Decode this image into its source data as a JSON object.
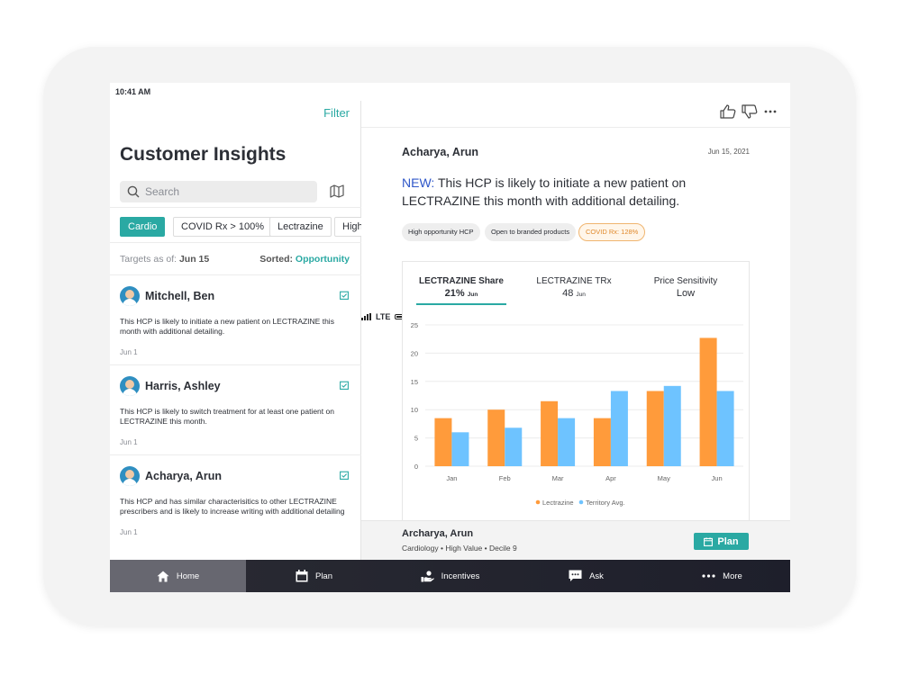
{
  "status": {
    "time": "10:41 AM",
    "network": "LTE"
  },
  "left": {
    "filter_label": "Filter",
    "title": "Customer Insights",
    "search_placeholder": "Search",
    "chips": [
      "Cardio",
      "COVID Rx > 100%",
      "Lectrazine",
      "High"
    ],
    "targets_label": "Targets as of:",
    "targets_date": "Jun 15",
    "sorted_label": "Sorted:",
    "sorted_value": "Opportunity",
    "cards": [
      {
        "name": "Mitchell, Ben",
        "desc": "This HCP is likely to initiate a new patient on LECTRAZINE this month with additional detailing.",
        "date": "Jun 1"
      },
      {
        "name": "Harris, Ashley",
        "desc": "This HCP is likely to switch treatment for at least one patient on LECTRAZINE this month.",
        "date": "Jun 1"
      },
      {
        "name": "Acharya, Arun",
        "desc": "This HCP and has similar characterisitics to other LECTRAZINE prescribers and is likely to increase writing with additional detailing",
        "date": "Jun 1"
      }
    ]
  },
  "detail": {
    "name": "Acharya, Arun",
    "date": "Jun 15, 2021",
    "headline_new": "NEW:",
    "headline_text": " This HCP is likely to initiate a new patient on LECTRAZINE this month with additional detailing.",
    "tags": [
      "High opportunity HCP",
      "Open to branded products",
      "COVID Rx: 128%"
    ],
    "tabs": [
      {
        "label": "LECTRAZINE Share",
        "value": "21%",
        "unit": "Jun"
      },
      {
        "label": "LECTRAZINE TRx",
        "value": "48",
        "unit": "Jun"
      },
      {
        "label": "Price Sensitivity",
        "value": "Low",
        "unit": ""
      }
    ],
    "footer_name": "Archarya, Arun",
    "footer_sub": "Cardiology • High Value • Decile 9",
    "plan_label": "Plan"
  },
  "chart_data": {
    "type": "bar",
    "categories": [
      "Jan",
      "Feb",
      "Mar",
      "Apr",
      "May",
      "Jun"
    ],
    "series": [
      {
        "name": "Lectrazine",
        "color": "#ff9b3b",
        "values": [
          8.5,
          10,
          11.5,
          8.5,
          13.3,
          22.7
        ]
      },
      {
        "name": "Territory Avg.",
        "color": "#6ec3ff",
        "values": [
          6,
          6.8,
          8.5,
          13.3,
          14.2,
          13.3
        ]
      }
    ],
    "yticks": [
      0,
      5,
      10,
      15,
      20,
      25
    ],
    "ylim": [
      0,
      25
    ],
    "grid": true,
    "legend": "bottom"
  },
  "tabbar": [
    {
      "label": "Home",
      "icon": "home-icon"
    },
    {
      "label": "Plan",
      "icon": "calendar-icon"
    },
    {
      "label": "Incentives",
      "icon": "incentives-icon"
    },
    {
      "label": "Ask",
      "icon": "chat-icon"
    },
    {
      "label": "More",
      "icon": "more-icon"
    }
  ]
}
